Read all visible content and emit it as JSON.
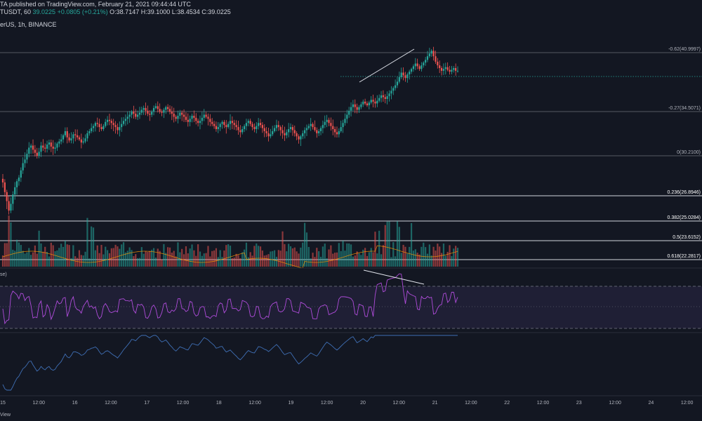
{
  "header": {
    "publisher": "TA published on TradingView.com, February 21, 2021 09:44:44 UTC",
    "symbol": "TUSDT, 60",
    "last": "39.0225",
    "change": "+0.0805 (+0.21%)",
    "ohlc": "O:38.7147 H:39.1000 L:38.4534 C:39.0225",
    "symbol_line": "erUS, 1h, BINANCE",
    "rsi_label": "se)"
  },
  "fib_levels": [
    {
      "label": "-0.62(40.9997)",
      "price": 40.9997,
      "white": false
    },
    {
      "label": "-0.27(34.5071)",
      "price": 34.5071,
      "white": false
    },
    {
      "label": "0(30.2100)",
      "price": 30.21,
      "white": false
    },
    {
      "label": "0.236(26.8946)",
      "price": 26.8946,
      "white": true
    },
    {
      "label": "0.382(25.0284)",
      "price": 25.0284,
      "white": true
    },
    {
      "label": "0.5(23.6152)",
      "price": 23.6152,
      "white": true
    },
    {
      "label": "0.618(22.2817)",
      "price": 22.2817,
      "white": true
    }
  ],
  "x_ticks": [
    "15",
    "12:00",
    "16",
    "12:00",
    "17",
    "12:00",
    "18",
    "12:00",
    "19",
    "12:00",
    "20",
    "12:00",
    "21",
    "12:00",
    "22",
    "12:00",
    "23",
    "12:00",
    "24",
    "12:00"
  ],
  "chart_data": {
    "type": "candlestick",
    "title": "",
    "interval": "1h",
    "exchange": "BINANCE",
    "last_price": 39.0225,
    "candles_close_approx": [
      28.0,
      27.2,
      26.5,
      25.8,
      26.3,
      27.0,
      27.6,
      28.1,
      28.4,
      29.0,
      29.6,
      29.9,
      30.4,
      31.0,
      31.2,
      30.8,
      30.5,
      30.2,
      30.6,
      31.2,
      31.0,
      30.9,
      31.3,
      31.5,
      31.1,
      30.9,
      31.0,
      31.4,
      31.6,
      31.8,
      32.2,
      32.6,
      32.0,
      31.7,
      31.9,
      32.3,
      32.2,
      32.0,
      31.8,
      31.5,
      31.6,
      31.9,
      32.4,
      32.6,
      32.9,
      33.1,
      33.4,
      33.3,
      33.0,
      32.8,
      33.1,
      33.5,
      33.7,
      33.6,
      33.4,
      33.2,
      33.0,
      32.7,
      33.0,
      33.3,
      33.6,
      33.8,
      34.0,
      34.2,
      34.5,
      34.3,
      34.0,
      34.2,
      34.4,
      34.7,
      34.9,
      34.6,
      34.3,
      34.2,
      34.5,
      34.9,
      35.1,
      34.8,
      34.5,
      34.4,
      34.7,
      35.0,
      34.8,
      34.5,
      34.3,
      34.0,
      33.8,
      34.1,
      34.4,
      34.2,
      34.0,
      33.7,
      33.5,
      33.8,
      34.1,
      33.9,
      33.6,
      33.4,
      33.6,
      33.9,
      34.2,
      34.0,
      33.8,
      33.5,
      33.3,
      33.1,
      32.8,
      33.0,
      33.3,
      33.5,
      33.2,
      33.0,
      33.3,
      33.6,
      33.4,
      33.2,
      33.0,
      32.7,
      32.5,
      32.8,
      33.1,
      33.4,
      33.6,
      33.3,
      33.0,
      32.8,
      33.1,
      33.4,
      33.2,
      32.9,
      32.6,
      32.4,
      32.1,
      32.3,
      32.6,
      32.9,
      33.2,
      33.0,
      32.7,
      32.4,
      32.2,
      32.5,
      32.8,
      33.0,
      32.7,
      32.4,
      32.1,
      31.8,
      32.1,
      32.4,
      32.7,
      32.9,
      33.1,
      33.3,
      33.0,
      32.7,
      32.4,
      32.6,
      32.9,
      33.2,
      33.5,
      33.7,
      33.4,
      33.1,
      32.8,
      32.5,
      32.3,
      32.6,
      33.0,
      33.4,
      33.8,
      34.2,
      34.6,
      35.0,
      35.3,
      35.0,
      34.7,
      35.0,
      35.3,
      35.6,
      35.4,
      35.2,
      35.5,
      35.8,
      35.6,
      35.4,
      35.7,
      36.0,
      36.3,
      36.1,
      35.9,
      36.2,
      36.5,
      36.8,
      37.1,
      37.4,
      37.8,
      38.3,
      38.8,
      38.5,
      38.2,
      38.6,
      38.9,
      39.2,
      39.5,
      39.8,
      39.5,
      39.2,
      39.6,
      39.9,
      40.2,
      40.6,
      40.9,
      41.2,
      40.6,
      40.0,
      39.6,
      39.3,
      39.0,
      39.2,
      39.4,
      39.1,
      38.9,
      39.1,
      39.3,
      39.0,
      39.0
    ]
  },
  "rsi": {
    "upper": 70,
    "lower": 30
  },
  "icons": [
    "tradingview-logo-icon"
  ]
}
